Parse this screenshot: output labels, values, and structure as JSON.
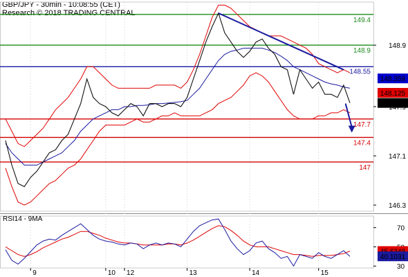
{
  "header": {
    "title": "GBP/JPY - 30min - 10:08:55 (CET)",
    "subtitle": "Research © 2018 TRADING CENTRAL"
  },
  "colors": {
    "price": "#111111",
    "bollinger": "#e00000",
    "ma": "#1a1aa0",
    "resistance_green": "#1d8a1d",
    "pivot_blue": "#1a1aa0",
    "support_red": "#d40000",
    "trendline": "#1a1aa0",
    "rsi": "#1a1aa0",
    "rsi_ma": "#e00000",
    "tag_blue": "#0000cc",
    "tag_red": "#e00000",
    "tag_black": "#000000"
  },
  "chart_data": [
    {
      "name": "price-panel",
      "type": "line",
      "ylim": [
        146.2,
        149.6
      ],
      "yticks": [
        146.3,
        147.1,
        147.9,
        148.9
      ],
      "xticks": [
        {
          "label": "9",
          "index": 4
        },
        {
          "label": "10",
          "index": 16
        },
        {
          "label": "12",
          "index": 19
        },
        {
          "label": "13",
          "index": 29
        },
        {
          "label": "14",
          "index": 39
        },
        {
          "label": "15",
          "index": 50
        }
      ],
      "levels": [
        {
          "value": 149.4,
          "label": "149.4",
          "color": "#1d8a1d"
        },
        {
          "value": 148.9,
          "label": "148.9",
          "color": "#1d8a1d"
        },
        {
          "value": 148.55,
          "label": "148.55",
          "color": "#1a1aa0"
        },
        {
          "value": 147.7,
          "label": "147.7",
          "color": "#d40000"
        },
        {
          "value": 147.4,
          "label": "147.4",
          "color": "#d40000"
        },
        {
          "value": 147.0,
          "label": "147",
          "color": "#d40000"
        }
      ],
      "price_tags": [
        {
          "value": 148.359,
          "label": "148.359",
          "bg": "#0000cc"
        },
        {
          "value": 148.125,
          "label": "148.125",
          "bg": "#e00000"
        },
        {
          "value": 147.96,
          "label": "147.96",
          "bg": "#000000"
        }
      ],
      "close": [
        147.35,
        146.95,
        146.65,
        146.6,
        146.75,
        146.85,
        147.0,
        147.15,
        147.2,
        147.35,
        147.45,
        147.7,
        147.95,
        148.35,
        148.05,
        147.95,
        147.9,
        147.8,
        147.75,
        147.85,
        147.95,
        147.9,
        147.75,
        147.95,
        147.95,
        147.9,
        147.95,
        147.95,
        147.9,
        148.05,
        148.35,
        148.65,
        148.95,
        149.2,
        149.42,
        149.1,
        148.95,
        148.8,
        148.7,
        148.8,
        148.95,
        149.0,
        148.85,
        148.75,
        148.55,
        148.5,
        148.1,
        148.5,
        148.35,
        148.2,
        148.3,
        148.1,
        148.1,
        148.05,
        148.25,
        147.96
      ],
      "bb_upper": [
        147.7,
        147.5,
        147.3,
        147.25,
        147.35,
        147.45,
        147.55,
        147.7,
        147.85,
        147.95,
        148.05,
        148.2,
        148.35,
        148.55,
        148.55,
        148.45,
        148.35,
        148.25,
        148.2,
        148.2,
        148.2,
        148.2,
        148.2,
        148.2,
        148.25,
        148.25,
        148.25,
        148.25,
        148.2,
        148.3,
        148.5,
        148.75,
        149.05,
        149.35,
        149.55,
        149.55,
        149.5,
        149.4,
        149.3,
        149.2,
        149.15,
        149.1,
        149.05,
        149.05,
        149.05,
        149.0,
        148.95,
        148.9,
        148.85,
        148.75,
        148.6,
        148.55,
        148.5,
        148.45,
        148.5,
        148.45
      ],
      "bb_lower": [
        146.9,
        146.6,
        146.35,
        146.3,
        146.35,
        146.45,
        146.55,
        146.65,
        146.7,
        146.8,
        146.9,
        146.95,
        147.05,
        147.2,
        147.35,
        147.5,
        147.6,
        147.6,
        147.6,
        147.6,
        147.65,
        147.7,
        147.65,
        147.65,
        147.7,
        147.75,
        147.75,
        147.8,
        147.75,
        147.75,
        147.75,
        147.75,
        147.8,
        147.85,
        147.95,
        148.0,
        148.05,
        148.15,
        148.25,
        148.4,
        148.45,
        148.4,
        148.3,
        148.15,
        148.0,
        147.85,
        147.75,
        147.7,
        147.7,
        147.7,
        147.75,
        147.75,
        147.8,
        147.8,
        147.85,
        147.8
      ],
      "ma": [
        147.3,
        147.15,
        147.05,
        146.95,
        146.95,
        146.95,
        147.0,
        147.05,
        147.1,
        147.15,
        147.25,
        147.35,
        147.5,
        147.6,
        147.7,
        147.75,
        147.8,
        147.85,
        147.85,
        147.9,
        147.9,
        147.92,
        147.92,
        147.93,
        147.95,
        147.95,
        147.96,
        147.97,
        147.98,
        148.0,
        148.1,
        148.2,
        148.35,
        148.5,
        148.65,
        148.75,
        148.8,
        148.82,
        148.85,
        148.85,
        148.85,
        148.85,
        148.82,
        148.78,
        148.72,
        148.65,
        148.55,
        148.5,
        148.45,
        148.4,
        148.35,
        148.3,
        148.27,
        148.25,
        148.22,
        148.2
      ],
      "trendline": [
        {
          "index": 34,
          "value": 149.42
        },
        {
          "index": 54,
          "value": 148.5
        }
      ],
      "forecast_arrow": [
        {
          "index": 54.3,
          "value": 147.95
        },
        {
          "index": 55.3,
          "value": 147.5
        }
      ]
    },
    {
      "name": "rsi-panel",
      "type": "line",
      "title": "RSI14 - 9MA",
      "ylim": [
        28,
        82
      ],
      "yticks": [
        30,
        50,
        70
      ],
      "rsi_tags": [
        {
          "value": 45.6348,
          "label": "45.6348",
          "bg": "#e00000"
        },
        {
          "value": 40.1031,
          "label": "40.1031",
          "bg": "#1a1aa0"
        }
      ],
      "rsi": [
        47,
        36,
        32,
        38,
        45,
        52,
        56,
        58,
        57,
        62,
        66,
        70,
        74,
        68,
        62,
        58,
        56,
        55,
        53,
        52,
        54,
        53,
        48,
        52,
        54,
        52,
        54,
        53,
        50,
        58,
        66,
        72,
        75,
        78,
        79,
        68,
        56,
        48,
        42,
        46,
        54,
        56,
        48,
        44,
        38,
        40,
        30,
        42,
        40,
        38,
        44,
        40,
        38,
        42,
        46,
        40
      ],
      "rsi_ma": [
        50,
        46,
        42,
        40,
        42,
        45,
        49,
        52,
        55,
        58,
        60,
        63,
        66,
        66,
        64,
        62,
        59,
        57,
        55,
        54,
        54,
        53,
        52,
        52,
        52,
        52,
        53,
        53,
        52,
        54,
        57,
        61,
        65,
        69,
        72,
        71,
        67,
        62,
        56,
        52,
        50,
        50,
        50,
        48,
        46,
        44,
        42,
        42,
        41,
        40,
        41,
        41,
        41,
        42,
        43,
        45.6
      ]
    }
  ]
}
